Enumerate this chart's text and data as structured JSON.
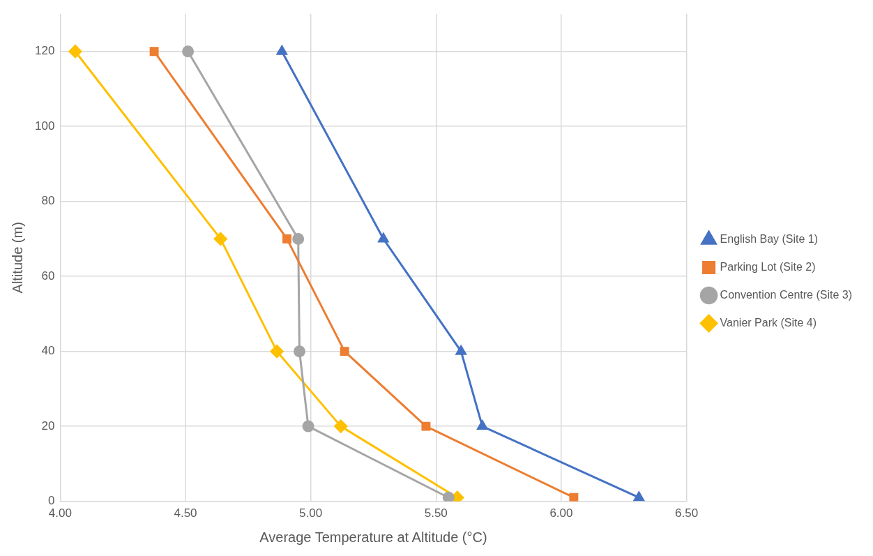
{
  "chart_data": {
    "type": "line",
    "xlabel": "Average Temperature at Altitude (°C)",
    "ylabel": "Altitude (m)",
    "xlim": [
      4.0,
      6.5
    ],
    "xticks": [
      {
        "value": 4.0,
        "label": "4.00"
      },
      {
        "value": 4.5,
        "label": "4.50"
      },
      {
        "value": 5.0,
        "label": "5.00"
      },
      {
        "value": 5.5,
        "label": "5.50"
      },
      {
        "value": 6.0,
        "label": "6.00"
      },
      {
        "value": 6.5,
        "label": "6.50"
      }
    ],
    "ylim": [
      0,
      130
    ],
    "yticks": [
      0,
      20,
      40,
      60,
      80,
      100,
      120
    ],
    "grid": true,
    "legend": "right",
    "line_style": "solid",
    "series": [
      {
        "name": "English Bay (Site 1)",
        "color": "#4472c4",
        "marker": "triangle",
        "x": [
          4.885,
          5.29,
          5.6,
          5.685,
          6.31
        ],
        "values": [
          120,
          70,
          40,
          20,
          1
        ]
      },
      {
        "name": "Parking Lot (Site 2)",
        "color": "#ed7d31",
        "marker": "square",
        "x": [
          4.375,
          4.905,
          5.135,
          5.46,
          6.05
        ],
        "values": [
          120,
          70,
          40,
          20,
          1
        ]
      },
      {
        "name": "Convention Centre (Site 3)",
        "color": "#a5a5a5",
        "marker": "circle",
        "x": [
          4.51,
          4.95,
          4.955,
          4.99,
          5.55
        ],
        "values": [
          120,
          70,
          40,
          20,
          1
        ]
      },
      {
        "name": "Vanier Park (Site 4)",
        "color": "#ffc000",
        "marker": "diamond",
        "x": [
          4.06,
          4.64,
          4.865,
          5.12,
          5.585
        ],
        "values": [
          120,
          70,
          40,
          20,
          1
        ]
      }
    ]
  }
}
